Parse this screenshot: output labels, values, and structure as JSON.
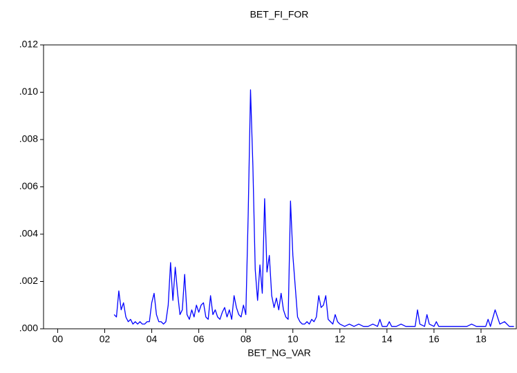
{
  "chart_data": {
    "type": "line",
    "title": "BET_FI_FOR",
    "x_label": "BET_NG_VAR",
    "x": [
      2002.4,
      2002.5,
      2002.6,
      2002.7,
      2002.8,
      2002.9,
      2003.0,
      2003.1,
      2003.2,
      2003.3,
      2003.4,
      2003.5,
      2003.6,
      2003.7,
      2003.8,
      2003.9,
      2004.0,
      2004.1,
      2004.2,
      2004.3,
      2004.4,
      2004.5,
      2004.6,
      2004.7,
      2004.8,
      2004.9,
      2005.0,
      2005.1,
      2005.2,
      2005.3,
      2005.4,
      2005.5,
      2005.6,
      2005.7,
      2005.8,
      2005.9,
      2006.0,
      2006.1,
      2006.2,
      2006.3,
      2006.4,
      2006.5,
      2006.6,
      2006.7,
      2006.8,
      2006.9,
      2007.0,
      2007.1,
      2007.2,
      2007.3,
      2007.4,
      2007.5,
      2007.6,
      2007.7,
      2007.8,
      2007.9,
      2008.0,
      2008.1,
      2008.2,
      2008.3,
      2008.4,
      2008.5,
      2008.6,
      2008.7,
      2008.8,
      2008.9,
      2009.0,
      2009.1,
      2009.2,
      2009.3,
      2009.4,
      2009.5,
      2009.6,
      2009.7,
      2009.8,
      2009.9,
      2010.0,
      2010.1,
      2010.2,
      2010.3,
      2010.4,
      2010.5,
      2010.6,
      2010.7,
      2010.8,
      2010.9,
      2011.0,
      2011.1,
      2011.2,
      2011.3,
      2011.4,
      2011.5,
      2011.6,
      2011.7,
      2011.8,
      2011.9,
      2012.0,
      2012.2,
      2012.4,
      2012.6,
      2012.8,
      2013.0,
      2013.2,
      2013.4,
      2013.6,
      2013.7,
      2013.8,
      2014.0,
      2014.1,
      2014.2,
      2014.4,
      2014.6,
      2014.8,
      2015.0,
      2015.2,
      2015.3,
      2015.4,
      2015.6,
      2015.7,
      2015.8,
      2016.0,
      2016.1,
      2016.2,
      2016.4,
      2016.6,
      2016.8,
      2017.0,
      2017.2,
      2017.4,
      2017.6,
      2017.8,
      2018.0,
      2018.2,
      2018.3,
      2018.4,
      2018.6,
      2018.8,
      2019.0,
      2019.2,
      2019.4
    ],
    "series": [
      {
        "color": "#0000ff",
        "values": [
          0.0006,
          0.0005,
          0.0016,
          0.0008,
          0.0011,
          0.0005,
          0.0003,
          0.0004,
          0.0002,
          0.0003,
          0.0002,
          0.0003,
          0.0002,
          0.0002,
          0.0003,
          0.0003,
          0.0011,
          0.0015,
          0.0006,
          0.0003,
          0.0003,
          0.0002,
          0.0003,
          0.001,
          0.0028,
          0.0012,
          0.0026,
          0.0015,
          0.0006,
          0.0008,
          0.0023,
          0.0006,
          0.0004,
          0.0008,
          0.0005,
          0.001,
          0.0007,
          0.001,
          0.0011,
          0.0005,
          0.0004,
          0.0014,
          0.0006,
          0.0008,
          0.0005,
          0.0004,
          0.0007,
          0.0009,
          0.0005,
          0.0008,
          0.0004,
          0.0014,
          0.0009,
          0.0006,
          0.0005,
          0.001,
          0.0006,
          0.0048,
          0.0101,
          0.0069,
          0.0025,
          0.0012,
          0.0027,
          0.0015,
          0.0055,
          0.0024,
          0.0031,
          0.0014,
          0.0009,
          0.0013,
          0.0008,
          0.0015,
          0.0008,
          0.0005,
          0.0004,
          0.0054,
          0.0031,
          0.0018,
          0.0005,
          0.0003,
          0.0002,
          0.0002,
          0.0003,
          0.0002,
          0.0004,
          0.0003,
          0.0005,
          0.0014,
          0.0009,
          0.001,
          0.0014,
          0.0004,
          0.0003,
          0.0002,
          0.0006,
          0.0003,
          0.0002,
          0.0001,
          0.0002,
          0.0001,
          0.0002,
          0.0001,
          0.0001,
          0.0002,
          0.0001,
          0.0004,
          0.0001,
          0.0001,
          0.0003,
          0.0001,
          0.0001,
          0.0002,
          0.0001,
          0.0001,
          0.0001,
          0.0008,
          0.0002,
          0.0001,
          0.0006,
          0.0002,
          0.0001,
          0.0003,
          0.0001,
          0.0001,
          0.0001,
          0.0001,
          0.0001,
          0.0001,
          0.0001,
          0.0002,
          0.0001,
          0.0001,
          0.0001,
          0.0004,
          0.0001,
          0.0008,
          0.0002,
          0.0003,
          0.0001,
          0.0001
        ]
      }
    ],
    "xlim": [
      1999.4,
      2019.5
    ],
    "xticks": [
      {
        "value": 2000,
        "label": "00"
      },
      {
        "value": 2002,
        "label": "02"
      },
      {
        "value": 2004,
        "label": "04"
      },
      {
        "value": 2006,
        "label": "06"
      },
      {
        "value": 2008,
        "label": "08"
      },
      {
        "value": 2010,
        "label": "10"
      },
      {
        "value": 2012,
        "label": "12"
      },
      {
        "value": 2014,
        "label": "14"
      },
      {
        "value": 2016,
        "label": "16"
      },
      {
        "value": 2018,
        "label": "18"
      }
    ],
    "ylim": [
      0,
      0.012
    ],
    "yticks": [
      {
        "value": 0,
        "label": ".000"
      },
      {
        "value": 0.002,
        "label": ".002"
      },
      {
        "value": 0.004,
        "label": ".004"
      },
      {
        "value": 0.006,
        "label": ".006"
      },
      {
        "value": 0.008,
        "label": ".008"
      },
      {
        "value": 0.01,
        "label": ".010"
      },
      {
        "value": 0.012,
        "label": ".012"
      }
    ]
  }
}
